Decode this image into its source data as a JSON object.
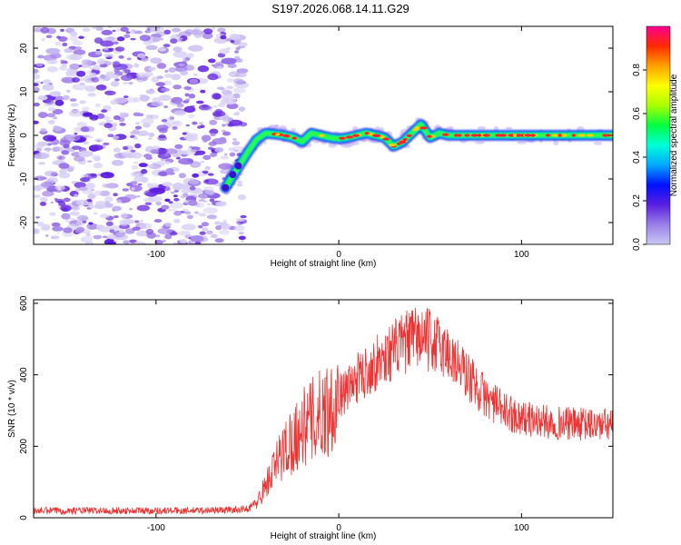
{
  "title": "S197.2026.068.14.11.G29",
  "chart_data": [
    {
      "type": "heatmap",
      "name": "spectrogram",
      "xlabel": "Height of straight line (km)",
      "ylabel": "Frequency (Hz)",
      "xlim": [
        -167,
        150
      ],
      "ylim": [
        -25,
        25
      ],
      "xticks": [
        -100,
        0,
        100
      ],
      "yticks": [
        -20,
        -10,
        0,
        10,
        20
      ],
      "colorbar": {
        "label": "Normalized spectral amplitude",
        "range": [
          0,
          1
        ],
        "ticks": [
          0.0,
          0.2,
          0.4,
          0.6,
          0.8
        ],
        "tick_labels": [
          "0.0",
          "0.2",
          "0.4",
          "0.6",
          "0.8"
        ],
        "colors": [
          "#c9c9f2",
          "#9a7ee8",
          "#5a1fe0",
          "#0010ff",
          "#00a8ff",
          "#00ffd8",
          "#00ff40",
          "#a8ff00",
          "#ffff00",
          "#ffa000",
          "#ff2a00",
          "#ff0090"
        ]
      },
      "noise_region_x": [
        -167,
        -52
      ],
      "signal_track": {
        "x": [
          -62,
          -56,
          -50,
          -45,
          -40,
          -35,
          -30,
          -25,
          -20,
          -15,
          -10,
          -5,
          0,
          5,
          10,
          15,
          20,
          25,
          30,
          35,
          40,
          45,
          50,
          55,
          60,
          70,
          80,
          90,
          100,
          110,
          120,
          130,
          140,
          150
        ],
        "freq": [
          -12,
          -8,
          -4,
          -1,
          0.5,
          0.3,
          0,
          -0.5,
          -1.5,
          0.5,
          0,
          -0.5,
          -0.8,
          -0.5,
          0,
          0.5,
          0,
          -0.5,
          -2.5,
          -1.5,
          0.5,
          2.5,
          -0.5,
          0.5,
          0,
          0,
          0,
          0,
          0,
          0,
          0,
          0,
          0,
          0
        ]
      }
    },
    {
      "type": "line",
      "name": "snr",
      "xlabel": "Height of straight line (km)",
      "ylabel": "SNR (10 * v/v)",
      "xlim": [
        -167,
        150
      ],
      "ylim": [
        0,
        610
      ],
      "xticks": [
        -100,
        0,
        100
      ],
      "yticks": [
        0,
        200,
        400,
        600
      ],
      "color": "#ee3333",
      "series": [
        {
          "name": "SNR",
          "x": [
            -167,
            -150,
            -120,
            -100,
            -80,
            -60,
            -50,
            -45,
            -40,
            -35,
            -30,
            -25,
            -20,
            -15,
            -10,
            -5,
            0,
            5,
            10,
            20,
            30,
            40,
            45,
            50,
            55,
            60,
            70,
            80,
            90,
            100,
            110,
            120,
            130,
            140,
            150
          ],
          "y": [
            20,
            20,
            20,
            20,
            20,
            22,
            25,
            40,
            90,
            140,
            190,
            220,
            250,
            270,
            290,
            310,
            340,
            360,
            390,
            430,
            470,
            500,
            505,
            495,
            480,
            460,
            400,
            340,
            300,
            280,
            270,
            265,
            262,
            260,
            260
          ]
        }
      ]
    }
  ]
}
